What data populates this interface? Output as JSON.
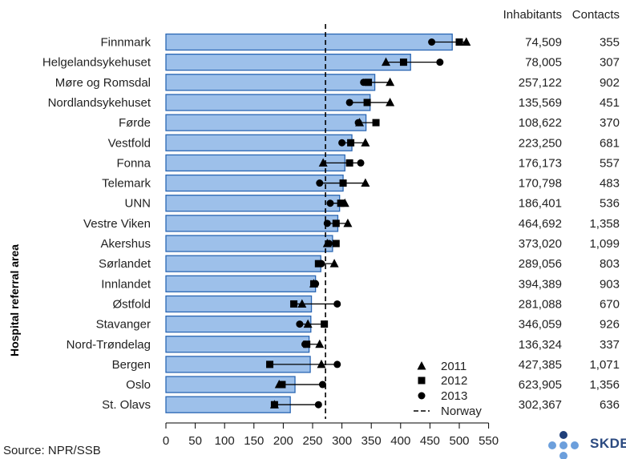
{
  "chart_data": {
    "type": "bar",
    "ylabel": "Hospital referral area",
    "categories": [
      "Finnmark",
      "Helgelandsykehuset",
      "Møre og Romsdal",
      "Nordlandsykehuset",
      "Førde",
      "Vestfold",
      "Fonna",
      "Telemark",
      "UNN",
      "Vestre Viken",
      "Akershus",
      "Sørlandet",
      "Innlandet",
      "Østfold",
      "Stavanger",
      "Nord-Trøndelag",
      "Bergen",
      "Oslo",
      "St. Olavs"
    ],
    "series": [
      {
        "name": "2011",
        "marker": "triangle",
        "values": [
          512,
          375,
          382,
          382,
          330,
          340,
          268,
          340,
          305,
          310,
          275,
          287,
          252,
          232,
          242,
          262,
          265,
          193,
          185
        ]
      },
      {
        "name": "2012",
        "marker": "square",
        "values": [
          500,
          405,
          345,
          343,
          358,
          315,
          313,
          302,
          298,
          290,
          290,
          260,
          252,
          218,
          270,
          240,
          177,
          198,
          185
        ]
      },
      {
        "name": "2013",
        "marker": "circle",
        "values": [
          453,
          467,
          337,
          313,
          328,
          300,
          332,
          262,
          280,
          275,
          278,
          265,
          255,
          292,
          228,
          237,
          292,
          267,
          260
        ]
      }
    ],
    "bar_values": [
      488,
      417,
      356,
      348,
      341,
      317,
      305,
      302,
      296,
      293,
      284,
      264,
      255,
      248,
      247,
      244,
      246,
      220,
      212
    ],
    "norway_average": 272,
    "xlim": [
      0,
      550
    ],
    "xticks": [
      0,
      50,
      100,
      150,
      200,
      250,
      300,
      350,
      400,
      450,
      500,
      550
    ],
    "legend": {
      "items": [
        "2011",
        "2012",
        "2013",
        "Norway"
      ],
      "placement": "bottom-right"
    },
    "table": {
      "headers": [
        "Inhabitants",
        "Contacts"
      ],
      "inhabitants": [
        "74,509",
        "78,005",
        "257,122",
        "135,569",
        "108,622",
        "223,250",
        "176,173",
        "170,798",
        "186,401",
        "464,692",
        "373,020",
        "289,056",
        "394,389",
        "281,088",
        "346,059",
        "136,324",
        "427,385",
        "623,905",
        "302,367"
      ],
      "contacts": [
        "355",
        "307",
        "902",
        "451",
        "370",
        "681",
        "557",
        "483",
        "536",
        "1,358",
        "1,099",
        "803",
        "903",
        "670",
        "926",
        "337",
        "1,071",
        "1,356",
        "636"
      ]
    },
    "colors": {
      "bar_fill": "#9dc0ea",
      "bar_stroke": "#2a66b3",
      "marker": "#000000"
    }
  },
  "source": "Source: NPR/SSB",
  "logo": {
    "text": "SKDE"
  }
}
